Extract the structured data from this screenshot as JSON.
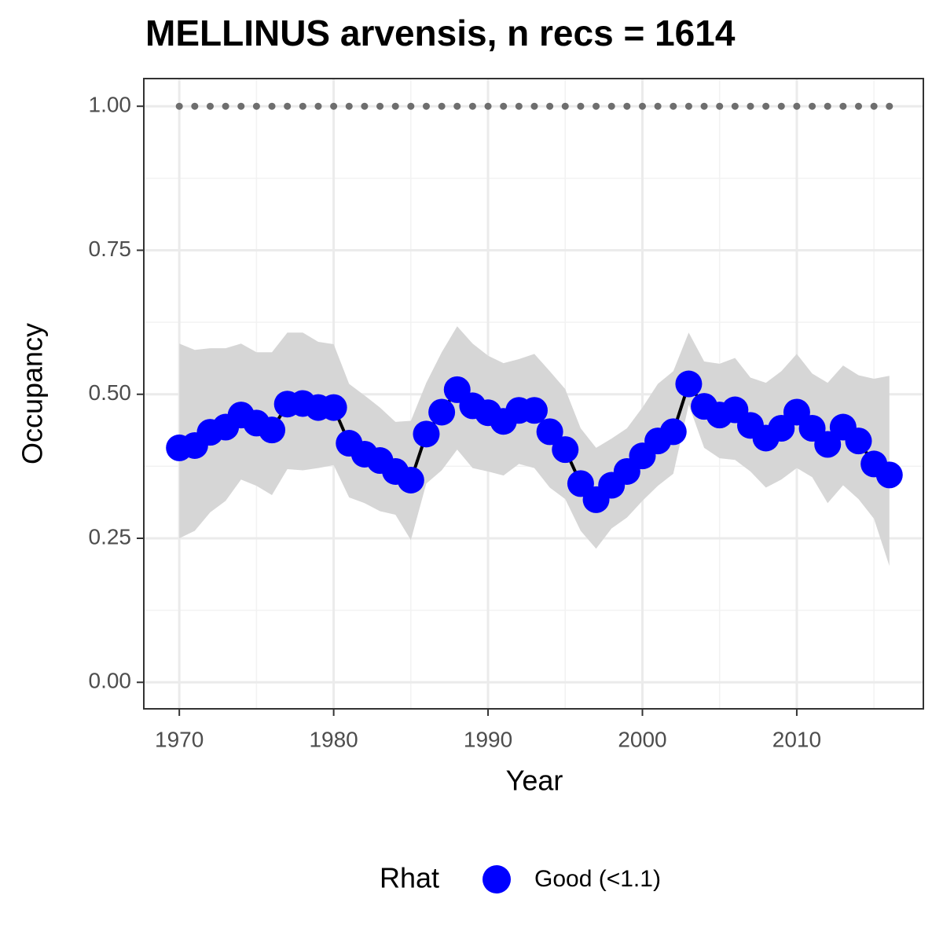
{
  "chart_data": {
    "type": "line",
    "title": "MELLINUS arvensis, n recs = 1614",
    "x_label": "Year",
    "y_label": "Occupancy",
    "legend_title": "Rhat",
    "x": [
      1970,
      1971,
      1972,
      1973,
      1974,
      1975,
      1976,
      1977,
      1978,
      1979,
      1980,
      1981,
      1982,
      1983,
      1984,
      1985,
      1986,
      1987,
      1988,
      1989,
      1990,
      1991,
      1992,
      1993,
      1994,
      1995,
      1996,
      1997,
      1998,
      1999,
      2000,
      2001,
      2002,
      2003,
      2004,
      2005,
      2006,
      2007,
      2008,
      2009,
      2010,
      2011,
      2012,
      2013,
      2014,
      2015,
      2016
    ],
    "series": [
      {
        "name": "Good (<1.1)",
        "color": "#0000ff",
        "line_color": "#000000",
        "band_color": "#d6d6d6",
        "values": [
          0.407,
          0.411,
          0.434,
          0.443,
          0.464,
          0.45,
          0.438,
          0.483,
          0.484,
          0.477,
          0.477,
          0.415,
          0.396,
          0.385,
          0.366,
          0.351,
          0.431,
          0.469,
          0.508,
          0.48,
          0.468,
          0.453,
          0.472,
          0.472,
          0.435,
          0.404,
          0.345,
          0.317,
          0.342,
          0.366,
          0.393,
          0.419,
          0.435,
          0.518,
          0.479,
          0.464,
          0.473,
          0.446,
          0.424,
          0.441,
          0.469,
          0.441,
          0.413,
          0.443,
          0.419,
          0.379,
          0.36
        ],
        "upper": [
          0.588,
          0.577,
          0.58,
          0.58,
          0.588,
          0.573,
          0.573,
          0.607,
          0.607,
          0.591,
          0.587,
          0.518,
          0.498,
          0.477,
          0.452,
          0.454,
          0.52,
          0.573,
          0.618,
          0.588,
          0.567,
          0.554,
          0.561,
          0.57,
          0.54,
          0.509,
          0.441,
          0.407,
          0.423,
          0.441,
          0.477,
          0.518,
          0.54,
          0.607,
          0.557,
          0.553,
          0.563,
          0.529,
          0.52,
          0.54,
          0.57,
          0.536,
          0.52,
          0.55,
          0.533,
          0.527,
          0.532
        ],
        "lower": [
          0.25,
          0.263,
          0.295,
          0.315,
          0.352,
          0.341,
          0.325,
          0.37,
          0.368,
          0.372,
          0.377,
          0.321,
          0.311,
          0.297,
          0.291,
          0.247,
          0.345,
          0.368,
          0.404,
          0.372,
          0.366,
          0.359,
          0.379,
          0.372,
          0.338,
          0.318,
          0.263,
          0.232,
          0.267,
          0.286,
          0.315,
          0.341,
          0.362,
          0.482,
          0.407,
          0.389,
          0.386,
          0.366,
          0.338,
          0.352,
          0.372,
          0.356,
          0.311,
          0.342,
          0.318,
          0.284,
          0.202
        ]
      }
    ],
    "reference_line": {
      "value": 1,
      "color": "#6e6e6e"
    },
    "xlim": [
      1967.7,
      2018.2
    ],
    "ylim": [
      -0.046,
      1.048
    ],
    "xticks": [
      1970,
      1980,
      1990,
      2000,
      2010
    ],
    "yticks": [
      {
        "value": 0,
        "label": "0.00"
      },
      {
        "value": 0.25,
        "label": "0.25"
      },
      {
        "value": 0.5,
        "label": "0.50"
      },
      {
        "value": 0.75,
        "label": "0.75"
      },
      {
        "value": 1,
        "label": "1.00"
      }
    ],
    "xminor": [
      1975,
      1985,
      1995,
      2005,
      2015
    ],
    "yminor": [
      0.125,
      0.375,
      0.625,
      0.875
    ],
    "grid": true
  }
}
